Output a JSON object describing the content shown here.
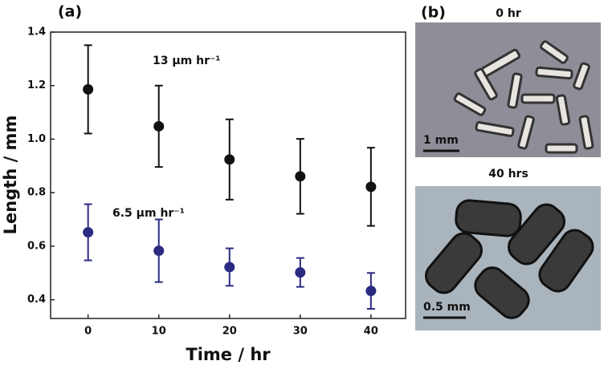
{
  "chart_data": {
    "type": "scatter",
    "panel_label": "(a)",
    "x_label": "Time / hr",
    "y_label": "Length / mm",
    "x": [
      0,
      10,
      20,
      30,
      40
    ],
    "xlim": [
      -5.3,
      44.9
    ],
    "xticks": [
      0,
      10,
      20,
      30,
      40
    ],
    "ylim": [
      0.33,
      1.4
    ],
    "yticks": [
      0.4,
      0.6,
      0.8,
      {
        "value": 1,
        "label": "1.0"
      },
      1.2,
      1.4
    ],
    "series": [
      {
        "color": "#111111",
        "values": [
          1.186,
          1.048,
          0.924,
          0.861,
          0.822
        ],
        "errors": [
          0.165,
          0.152,
          0.15,
          0.14,
          0.146
        ]
      },
      {
        "color": "#2b2b82",
        "values": [
          0.652,
          0.583,
          0.522,
          0.502,
          0.433
        ],
        "errors": [
          0.105,
          0.117,
          0.07,
          0.054,
          0.067
        ]
      }
    ],
    "annotations": [
      "13 μm hr⁻¹",
      "6.5 μm hr⁻¹"
    ]
  },
  "panel_b": {
    "label": "(b)",
    "images": [
      {
        "caption": "0 hr",
        "scale_bar": "1 mm"
      },
      {
        "caption": "40 hrs",
        "scale_bar": "0.5 mm"
      }
    ]
  }
}
